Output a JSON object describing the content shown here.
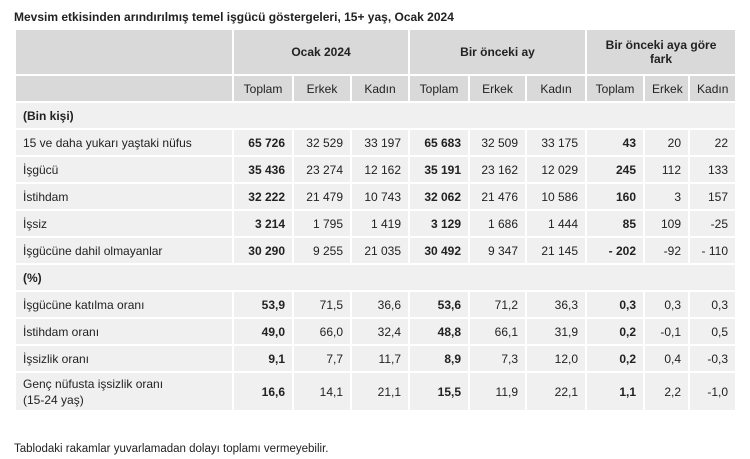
{
  "title": "Mevsim etkisinden arındırılmış temel işgücü göstergeleri, 15+ yaş, Ocak 2024",
  "table": {
    "groups": [
      "Ocak 2024",
      "Bir önceki ay",
      "Bir önceki aya göre fark"
    ],
    "columns": [
      "Toplam",
      "Erkek",
      "Kadın",
      "Toplam",
      "Erkek",
      "Kadın",
      "Toplam",
      "Erkek",
      "Kadın"
    ],
    "rows": [
      {
        "section": "(Bin kişi)"
      },
      {
        "label": "15 ve daha yukarı yaştaki nüfus",
        "values": [
          "65 726",
          "32 529",
          "33 197",
          "65 683",
          "32 509",
          "33 175",
          "43",
          "20",
          "22"
        ]
      },
      {
        "label": "İşgücü",
        "values": [
          "35 436",
          "23 274",
          "12 162",
          "35 191",
          "23 162",
          "12 029",
          "245",
          "112",
          "133"
        ]
      },
      {
        "label": "İstihdam",
        "values": [
          "32 222",
          "21 479",
          "10 743",
          "32 062",
          "21 476",
          "10 586",
          "160",
          "3",
          "157"
        ]
      },
      {
        "label": "İşsiz",
        "values": [
          "3 214",
          "1 795",
          "1 419",
          "3 129",
          "1 686",
          "1 444",
          "85",
          "109",
          "-25"
        ]
      },
      {
        "label": "İşgücüne dahil olmayanlar",
        "values": [
          "30 290",
          "9 255",
          "21 035",
          "30 492",
          "9 347",
          "21 145",
          "- 202",
          "-92",
          "- 110"
        ]
      },
      {
        "section": "(%)"
      },
      {
        "label": "İşgücüne katılma oranı",
        "values": [
          "53,9",
          "71,5",
          "36,6",
          "53,6",
          "71,2",
          "36,3",
          "0,3",
          "0,3",
          "0,3"
        ]
      },
      {
        "label": "İstihdam oranı",
        "values": [
          "49,0",
          "66,0",
          "32,4",
          "48,8",
          "66,1",
          "31,9",
          "0,2",
          "-0,1",
          "0,5"
        ]
      },
      {
        "label": "İşsizlik oranı",
        "values": [
          "9,1",
          "7,7",
          "11,7",
          "8,9",
          "7,3",
          "12,0",
          "0,2",
          "0,4",
          "-0,3"
        ]
      },
      {
        "label": "Genç nüfusta işsizlik oranı\n(15-24 yaş)",
        "values": [
          "16,6",
          "14,1",
          "21,1",
          "15,5",
          "11,9",
          "22,1",
          "1,1",
          "2,2",
          "-1,0"
        ]
      }
    ]
  },
  "footnote": "Tablodaki rakamlar yuvarlamadan dolayı toplamı vermeyebilir."
}
